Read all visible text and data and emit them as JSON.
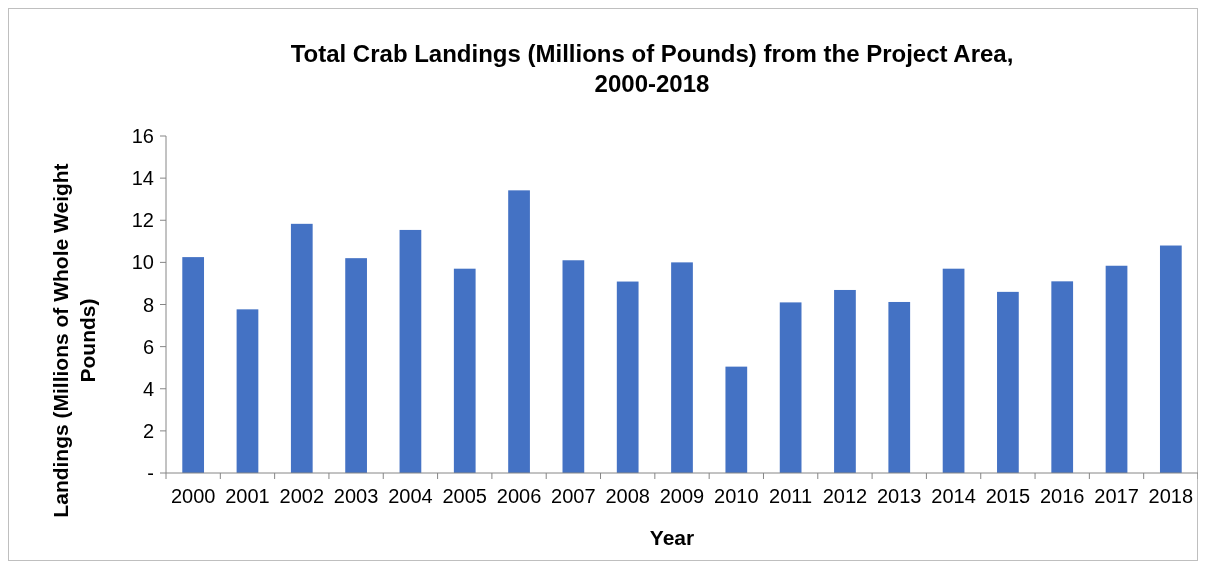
{
  "chart_data": {
    "type": "bar",
    "title": "Total Crab Landings (Millions of Pounds) from the Project Area,\n2000-2018",
    "xlabel": "Year",
    "ylabel": "Landings (Millions of Whole Weight\nPounds)",
    "categories": [
      "2000",
      "2001",
      "2002",
      "2003",
      "2004",
      "2005",
      "2006",
      "2007",
      "2008",
      "2009",
      "2010",
      "2011",
      "2012",
      "2013",
      "2014",
      "2015",
      "2016",
      "2017",
      "2018"
    ],
    "values": [
      10.25,
      7.77,
      11.83,
      10.2,
      11.54,
      9.7,
      13.42,
      10.1,
      9.09,
      10.0,
      5.05,
      8.1,
      8.69,
      8.12,
      9.7,
      8.6,
      9.1,
      9.84,
      10.8
    ],
    "color": "#4472c4",
    "ylim": [
      0,
      16
    ],
    "yticks": [
      {
        "value": 0,
        "label": "-"
      },
      2,
      4,
      6,
      8,
      10,
      12,
      14,
      16
    ],
    "grid": false
  }
}
